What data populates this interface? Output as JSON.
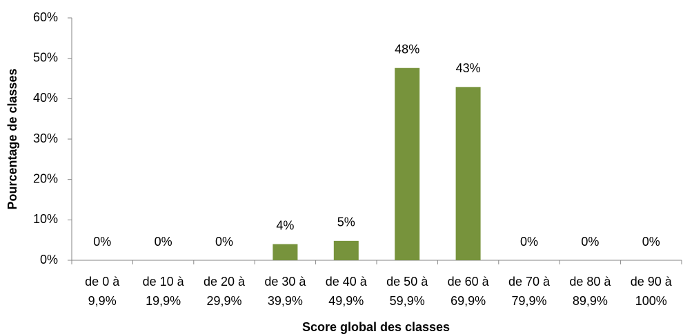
{
  "chart_data": {
    "type": "bar",
    "xlabel": "Score global des classes",
    "ylabel": "Pourcentage de classes",
    "categories": [
      [
        "de 0 à",
        "9,9%"
      ],
      [
        "de 10 à",
        "19,9%"
      ],
      [
        "de 20 à",
        "29,9%"
      ],
      [
        "de 30 à",
        "39,9%"
      ],
      [
        "de 40 à",
        "49,9%"
      ],
      [
        "de 50 à",
        "59,9%"
      ],
      [
        "de 60 à",
        "69,9%"
      ],
      [
        "de 70 à",
        "79,9%"
      ],
      [
        "de 80 à",
        "89,9%"
      ],
      [
        "de 90 à",
        "100%"
      ]
    ],
    "values": [
      0,
      0,
      0,
      4,
      4.8,
      47.6,
      42.9,
      0,
      0,
      0
    ],
    "value_labels": [
      "0%",
      "0%",
      "0%",
      "4%",
      "5%",
      "48%",
      "43%",
      "0%",
      "0%",
      "0%"
    ],
    "color": "#77933c",
    "ylim": [
      0,
      60
    ],
    "yticks": [
      {
        "value": 0,
        "label": "0%"
      },
      {
        "value": 10,
        "label": "10%"
      },
      {
        "value": 20,
        "label": "20%"
      },
      {
        "value": 30,
        "label": "30%"
      },
      {
        "value": 40,
        "label": "40%"
      },
      {
        "value": 50,
        "label": "50%"
      },
      {
        "value": 60,
        "label": "60%"
      }
    ],
    "grid": false
  }
}
